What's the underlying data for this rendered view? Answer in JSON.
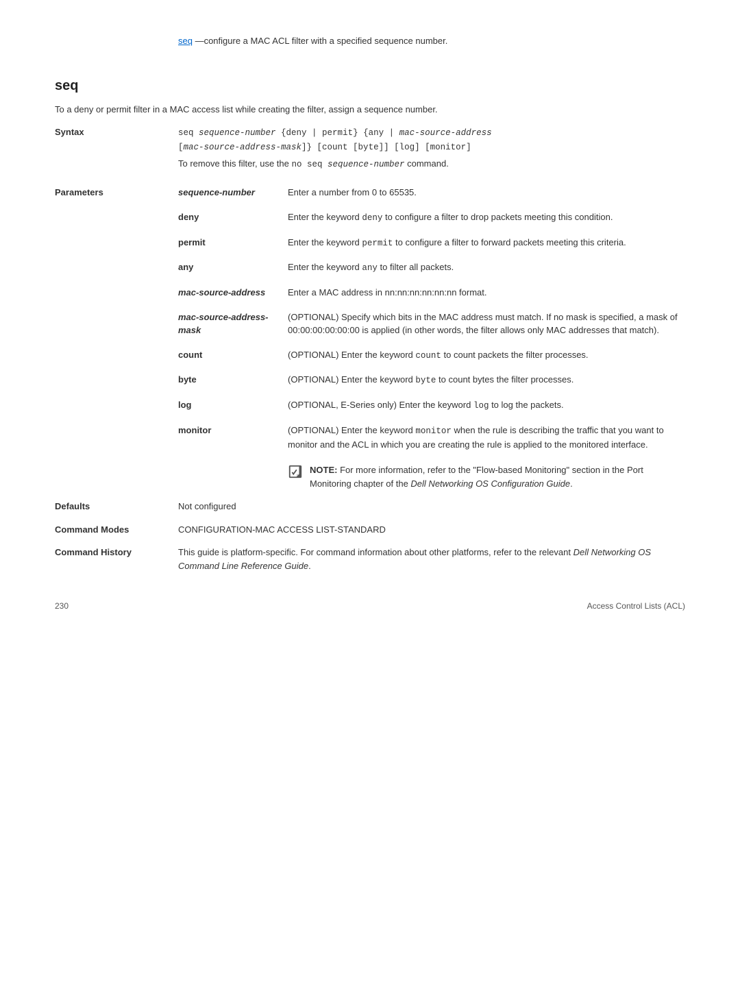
{
  "topLink": {
    "linkText": "seq",
    "restText": " —configure a MAC ACL filter with a specified sequence number."
  },
  "heading": "seq",
  "intro": "To a deny or permit filter in a MAC access list while creating the filter, assign a sequence number.",
  "syntax": {
    "label": "Syntax",
    "line1_pre": "seq ",
    "line1_seq": "sequence-number",
    "line1_mid": " {deny | permit} {any | ",
    "line1_msa": "mac-source-address",
    "line2_pre": "[",
    "line2_mask": "mac-source-address-mask",
    "line2_post": "]} [count [byte]] [log] [monitor]",
    "removePre": "To remove this filter, use the ",
    "removeCmd": "no seq ",
    "removeItal": "sequence-number",
    "removePost": " command."
  },
  "parametersLabel": "Parameters",
  "params": [
    {
      "name": "sequence-number",
      "italic": true,
      "desc": "Enter a number from 0 to 65535."
    },
    {
      "name": "deny",
      "italic": false,
      "desc": "Enter the keyword <code>deny</code> to configure a filter to drop packets meeting this condition."
    },
    {
      "name": "permit",
      "italic": false,
      "desc": "Enter the keyword <code>permit</code> to configure a filter to forward packets meeting this criteria."
    },
    {
      "name": "any",
      "italic": false,
      "desc": "Enter the keyword <code>any</code> to filter all packets."
    },
    {
      "name": "mac-source-address",
      "italic": true,
      "desc": "Enter a MAC address in nn:nn:nn:nn:nn:nn format."
    },
    {
      "name": "mac-source-address-mask",
      "italic": true,
      "desc": "(OPTIONAL) Specify which bits in the MAC address must match. If no mask is specified, a mask of 00:00:00:00:00:00 is applied (in other words, the filter allows only MAC addresses that match)."
    },
    {
      "name": "count",
      "italic": false,
      "desc": "(OPTIONAL) Enter the keyword <code>count</code> to count packets the filter processes."
    },
    {
      "name": "byte",
      "italic": false,
      "desc": "(OPTIONAL) Enter the keyword <code>byte</code> to count bytes the filter processes."
    },
    {
      "name": "log",
      "italic": false,
      "desc": "(OPTIONAL, E-Series only) Enter the keyword <code>log</code> to log the packets."
    },
    {
      "name": "monitor",
      "italic": false,
      "desc": "(OPTIONAL) Enter the keyword <code>monitor</code> when the rule is describing the traffic that you want to monitor and the ACL in which you are creating the rule is applied to the monitored interface."
    }
  ],
  "note": {
    "bold": "NOTE: ",
    "body": "For more information, refer to the \"Flow-based Monitoring\" section in the Port Monitoring chapter of the ",
    "ital": "Dell Networking OS Configuration Guide",
    "post": "."
  },
  "defaults": {
    "label": "Defaults",
    "value": "Not configured"
  },
  "commandModes": {
    "label": "Command Modes",
    "value": "CONFIGURATION-MAC ACCESS LIST-STANDARD"
  },
  "commandHistory": {
    "label": "Command History",
    "pre": "This guide is platform-specific. For command information about other platforms, refer to the relevant ",
    "ital": "Dell Networking OS Command Line Reference Guide",
    "post": "."
  },
  "footer": {
    "page": "230",
    "title": "Access Control Lists (ACL)"
  },
  "noteIconColor": "#555"
}
